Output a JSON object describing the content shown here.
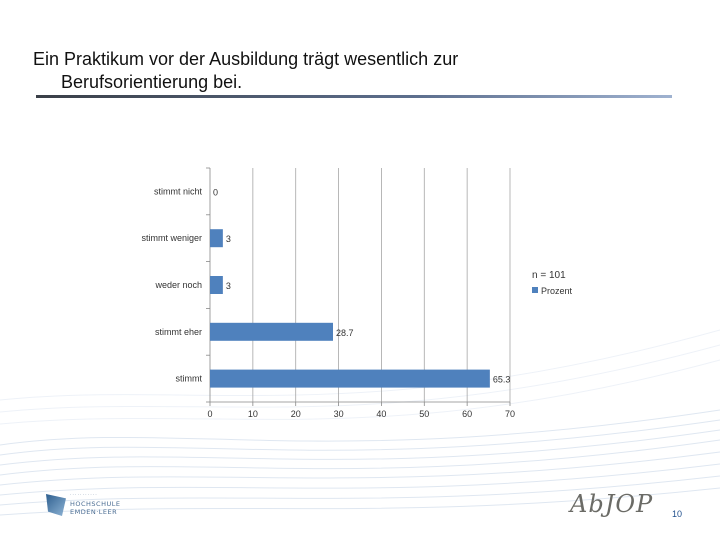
{
  "slide": {
    "title_line1": "Ein Praktikum vor der Ausbildung trägt wesentlich zur",
    "title_line2": "Berufsorientierung bei.",
    "page_number": "10",
    "logo_left_line1": "HOCHSCHULE",
    "logo_left_line2": "EMDEN·LEER",
    "logo_right_text": "AbJOP"
  },
  "colors": {
    "bar": "#4f81bd",
    "axis": "#888888",
    "grid": "#a6a6a6",
    "text": "#333333",
    "accent": "#1f4e8c"
  },
  "chart_data": {
    "type": "bar",
    "orientation": "horizontal",
    "title": "",
    "xlabel": "",
    "ylabel": "",
    "categories": [
      "stimmt nicht",
      "stimmt weniger",
      "weder noch",
      "stimmt eher",
      "stimmt"
    ],
    "series": [
      {
        "name": "Prozent",
        "values": [
          0,
          3,
          3,
          28.7,
          65.3
        ]
      }
    ],
    "data_labels": [
      "0",
      "3",
      "3",
      "28.7",
      "65.3"
    ],
    "xlim": [
      0,
      70
    ],
    "xticks": [
      "0",
      "10",
      "20",
      "30",
      "40",
      "50",
      "60",
      "70"
    ],
    "grid": true,
    "legend_position": "right",
    "annotation": "n = 101"
  }
}
